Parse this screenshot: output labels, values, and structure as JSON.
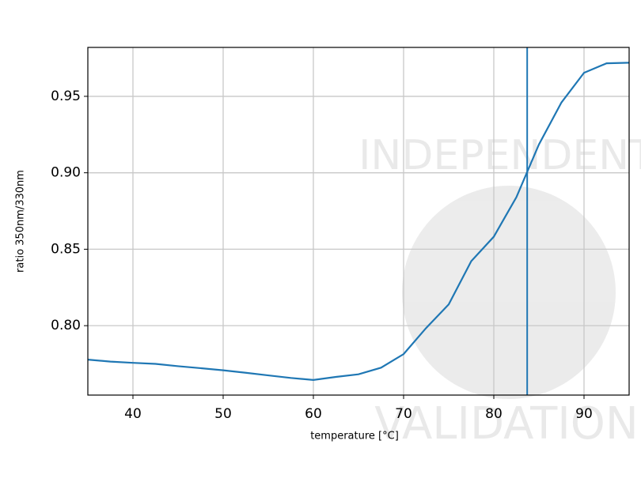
{
  "chart_data": {
    "type": "line",
    "xlabel": "temperature [°C]",
    "ylabel": "ratio 350nm/330nm",
    "watermark": [
      "INDEPENDENT",
      "VALIDATION"
    ],
    "x": [
      35,
      37.5,
      40,
      42.5,
      45,
      47.5,
      50,
      52.5,
      55,
      57.5,
      60,
      62.5,
      65,
      67.5,
      70,
      72.5,
      75,
      77.5,
      80,
      82.5,
      85,
      87.5,
      90,
      92.5,
      95
    ],
    "series": [
      {
        "color": "#1f77b4",
        "values": [
          0.7778,
          0.7765,
          0.7757,
          0.775,
          0.7735,
          0.7722,
          0.7708,
          0.7692,
          0.7675,
          0.7658,
          0.7645,
          0.7665,
          0.7682,
          0.7725,
          0.7814,
          0.7985,
          0.8139,
          0.8422,
          0.8582,
          0.884,
          0.9185,
          0.946,
          0.9654,
          0.9716,
          0.972
        ]
      }
    ],
    "vline": 83.7,
    "vline_color": "#1f77b4",
    "xlim": [
      35,
      95
    ],
    "ylim": [
      0.7546,
      0.982
    ],
    "xticks": [
      40,
      50,
      60,
      70,
      80,
      90
    ],
    "yticks": [
      {
        "value": 0.8,
        "label": "0.80"
      },
      0.85,
      {
        "value": 0.9,
        "label": "0.90"
      },
      0.95
    ],
    "grid": true
  }
}
